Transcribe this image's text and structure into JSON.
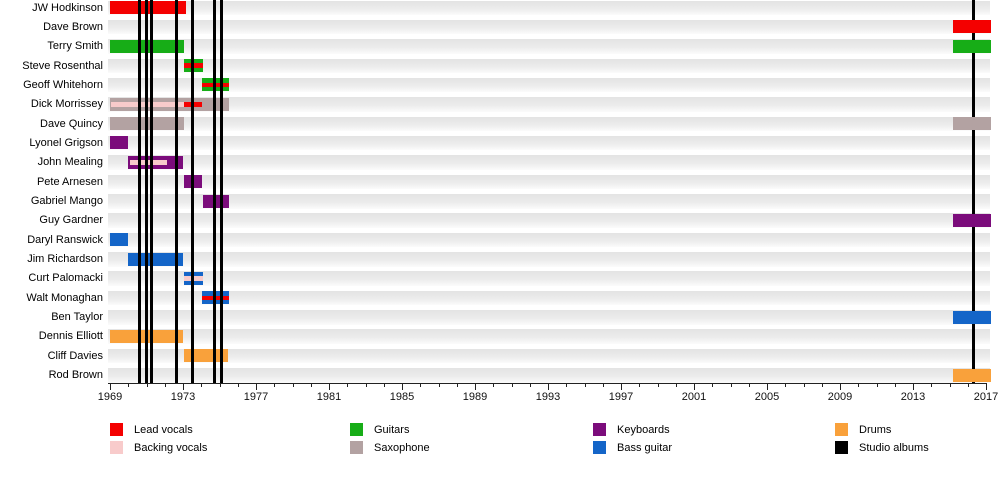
{
  "chart_data": {
    "type": "bar",
    "subtype": "band-personnel-gantt-timeline",
    "title": "",
    "xlabel": "",
    "ylabel": "",
    "grid": "horizontal-row-bands",
    "legend_position": "bottom",
    "x_axis": {
      "start": 1969,
      "end": 2017,
      "major_tick_step": 4,
      "minor_tick_step": 1,
      "tick_labels": [
        "1969",
        "1973",
        "1977",
        "1981",
        "1985",
        "1989",
        "1993",
        "1997",
        "2001",
        "2005",
        "2009",
        "2013",
        "2017"
      ]
    },
    "roles": {
      "lead_vocals": {
        "label": "Lead vocals",
        "color": "#f40000"
      },
      "backing_vocals": {
        "label": "Backing vocals",
        "color": "#f8cbcb"
      },
      "guitars": {
        "label": "Guitars",
        "color": "#17ad17"
      },
      "saxophone": {
        "label": "Saxophone",
        "color": "#b3a2a2"
      },
      "keyboards": {
        "label": "Keyboards",
        "color": "#7b0c7b"
      },
      "bass_guitar": {
        "label": "Bass guitar",
        "color": "#1465c8"
      },
      "drums": {
        "label": "Drums",
        "color": "#f9a13b"
      },
      "studio_albums": {
        "label": "Studio albums",
        "color": "#000000"
      }
    },
    "legend_columns": [
      [
        "lead_vocals",
        "backing_vocals"
      ],
      [
        "guitars",
        "saxophone"
      ],
      [
        "keyboards",
        "bass_guitar"
      ],
      [
        "drums",
        "studio_albums"
      ]
    ],
    "members": [
      {
        "name": "JW Hodkinson",
        "bars": [
          {
            "from": 1969.0,
            "to": 1973.15,
            "role": "lead_vocals"
          }
        ]
      },
      {
        "name": "Dave Brown",
        "bars": [
          {
            "from": 2015.2,
            "to": 2017.3,
            "role": "lead_vocals"
          }
        ]
      },
      {
        "name": "Terry Smith",
        "bars": [
          {
            "from": 1969.0,
            "to": 1973.05,
            "role": "guitars"
          },
          {
            "from": 2015.2,
            "to": 2017.3,
            "role": "guitars"
          }
        ]
      },
      {
        "name": "Steve Rosenthal",
        "bars": [
          {
            "from": 1973.05,
            "to": 1974.1,
            "role": "guitars",
            "stripes": [
              {
                "from": 1973.05,
                "to": 1974.1,
                "role": "lead_vocals"
              }
            ]
          }
        ]
      },
      {
        "name": "Geoff Whitehorn",
        "bars": [
          {
            "from": 1974.05,
            "to": 1975.5,
            "role": "guitars",
            "stripes": [
              {
                "from": 1974.05,
                "to": 1975.5,
                "role": "lead_vocals"
              }
            ]
          }
        ]
      },
      {
        "name": "Dick Morrissey",
        "bars": [
          {
            "from": 1969.0,
            "to": 1975.5,
            "role": "saxophone",
            "stripes": [
              {
                "from": 1969.05,
                "to": 1973.05,
                "role": "backing_vocals"
              },
              {
                "from": 1973.05,
                "to": 1974.05,
                "role": "lead_vocals"
              }
            ]
          }
        ]
      },
      {
        "name": "Dave Quincy",
        "bars": [
          {
            "from": 1969.0,
            "to": 1973.05,
            "role": "saxophone"
          },
          {
            "from": 2015.2,
            "to": 2017.3,
            "role": "saxophone"
          }
        ]
      },
      {
        "name": "Lyonel Grigson",
        "bars": [
          {
            "from": 1969.0,
            "to": 1970.0,
            "role": "keyboards"
          }
        ]
      },
      {
        "name": "John Mealing",
        "bars": [
          {
            "from": 1970.0,
            "to": 1973.0,
            "role": "keyboards",
            "stripes": [
              {
                "from": 1970.1,
                "to": 1972.1,
                "role": "backing_vocals"
              }
            ]
          }
        ]
      },
      {
        "name": "Pete Arnesen",
        "bars": [
          {
            "from": 1973.05,
            "to": 1974.05,
            "role": "keyboards"
          }
        ]
      },
      {
        "name": "Gabriel Mango",
        "bars": [
          {
            "from": 1974.1,
            "to": 1975.5,
            "role": "keyboards"
          }
        ]
      },
      {
        "name": "Guy Gardner",
        "bars": [
          {
            "from": 2015.2,
            "to": 2017.3,
            "role": "keyboards"
          }
        ]
      },
      {
        "name": "Daryl Ranswick",
        "bars": [
          {
            "from": 1969.0,
            "to": 1970.0,
            "role": "bass_guitar"
          }
        ]
      },
      {
        "name": "Jim Richardson",
        "bars": [
          {
            "from": 1970.0,
            "to": 1973.0,
            "role": "bass_guitar"
          }
        ]
      },
      {
        "name": "Curt Palomacki",
        "bars": [
          {
            "from": 1973.05,
            "to": 1974.1,
            "role": "bass_guitar",
            "stripes": [
              {
                "from": 1973.05,
                "to": 1974.1,
                "role": "backing_vocals"
              }
            ]
          }
        ]
      },
      {
        "name": "Walt Monaghan",
        "bars": [
          {
            "from": 1974.05,
            "to": 1975.5,
            "role": "bass_guitar",
            "stripes": [
              {
                "from": 1974.05,
                "to": 1975.5,
                "role": "lead_vocals"
              }
            ]
          }
        ]
      },
      {
        "name": "Ben Taylor",
        "bars": [
          {
            "from": 2015.2,
            "to": 2017.3,
            "role": "bass_guitar"
          }
        ]
      },
      {
        "name": "Dennis Elliott",
        "bars": [
          {
            "from": 1969.0,
            "to": 1973.0,
            "role": "drums"
          }
        ]
      },
      {
        "name": "Cliff Davies",
        "bars": [
          {
            "from": 1973.05,
            "to": 1975.45,
            "role": "drums"
          }
        ]
      },
      {
        "name": "Rod Brown",
        "bars": [
          {
            "from": 2015.2,
            "to": 2017.3,
            "role": "drums"
          }
        ]
      }
    ],
    "album_lines": [
      {
        "year": 1970.6,
        "front": true
      },
      {
        "year": 1971.0,
        "front": true
      },
      {
        "year": 1971.3,
        "front": true
      },
      {
        "year": 1972.65,
        "front": true
      },
      {
        "year": 1973.5,
        "front": true
      },
      {
        "year": 1974.75,
        "front": true
      },
      {
        "year": 1975.1,
        "front": true
      },
      {
        "year": 2016.3,
        "front": false
      }
    ]
  }
}
